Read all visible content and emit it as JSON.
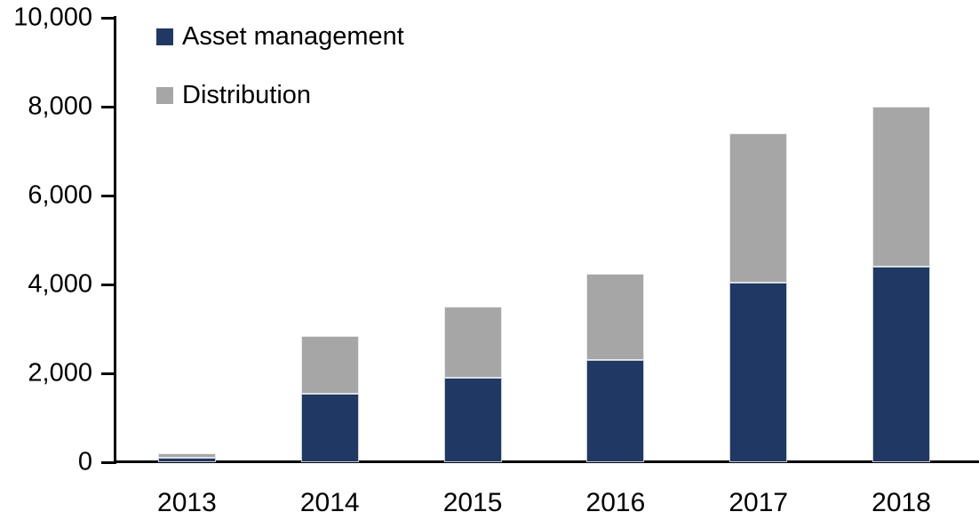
{
  "chart_data": {
    "type": "bar",
    "stacked": true,
    "title": "",
    "categories": [
      "2013",
      "2014",
      "2015",
      "2016",
      "2017",
      "2018"
    ],
    "series": [
      {
        "name": "Asset management",
        "color": "#1F3864",
        "values": [
          100,
          1550,
          1900,
          2300,
          4050,
          4400
        ]
      },
      {
        "name": "Distribution",
        "color": "#A6A6A6",
        "values": [
          100,
          1300,
          1600,
          1950,
          3350,
          3600
        ]
      }
    ],
    "totals": [
      200,
      2850,
      3500,
      4250,
      7400,
      8000
    ],
    "ylim": [
      0,
      10000
    ],
    "ytick_values": [
      0,
      2000,
      4000,
      6000,
      8000,
      10000
    ],
    "ytick_labels": [
      "0",
      "2,000",
      "4,000",
      "6,000",
      "8,000",
      "10,000"
    ],
    "xlabel": "",
    "ylabel": "",
    "grid": false,
    "legend_position": "top-left",
    "axis_color": "#000000",
    "background": "#FFFFFF"
  }
}
